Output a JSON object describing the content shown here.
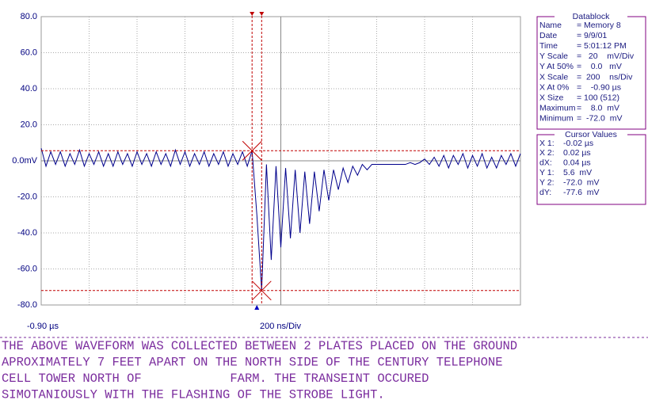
{
  "chart_data": {
    "type": "line",
    "x_start_label": "-0.90 µs",
    "x_scale_label": "200 ns/Div",
    "xlim": [
      -0.9,
      1.1
    ],
    "ylim": [
      -80,
      80
    ],
    "yticks": [
      {
        "value": 80,
        "label": "80.0"
      },
      {
        "value": 60,
        "label": "60.0"
      },
      {
        "value": 40,
        "label": "40.0"
      },
      {
        "value": 20,
        "label": "20.0"
      },
      {
        "value": 0,
        "label": "0.0mV"
      },
      {
        "value": -20,
        "label": "-20.0"
      },
      {
        "value": -40,
        "label": "-40.0"
      },
      {
        "value": -60,
        "label": "-60.0"
      },
      {
        "value": -80,
        "label": "-80.0"
      }
    ],
    "grid": true,
    "cursors": {
      "x1": -0.02,
      "x2": 0.02,
      "y1": 5.6,
      "y2": -72
    },
    "cursor_color": "#c00000",
    "series": [
      {
        "color": "#00008b",
        "x": [
          -0.9,
          -0.88,
          -0.86,
          -0.84,
          -0.82,
          -0.8,
          -0.78,
          -0.76,
          -0.74,
          -0.72,
          -0.7,
          -0.68,
          -0.66,
          -0.64,
          -0.62,
          -0.6,
          -0.58,
          -0.56,
          -0.54,
          -0.52,
          -0.5,
          -0.48,
          -0.46,
          -0.44,
          -0.42,
          -0.4,
          -0.38,
          -0.36,
          -0.34,
          -0.32,
          -0.3,
          -0.28,
          -0.26,
          -0.24,
          -0.22,
          -0.2,
          -0.18,
          -0.16,
          -0.14,
          -0.12,
          -0.1,
          -0.08,
          -0.06,
          -0.04,
          -0.02,
          0,
          0.02,
          0.04,
          0.06,
          0.08,
          0.1,
          0.12,
          0.14,
          0.16,
          0.18,
          0.2,
          0.22,
          0.24,
          0.26,
          0.28,
          0.3,
          0.32,
          0.34,
          0.36,
          0.38,
          0.4,
          0.42,
          0.44,
          0.46,
          0.48,
          0.5,
          0.52,
          0.54,
          0.56,
          0.58,
          0.6,
          0.62,
          0.64,
          0.66,
          0.68,
          0.7,
          0.72,
          0.74,
          0.76,
          0.78,
          0.8,
          0.82,
          0.84,
          0.86,
          0.88,
          0.9,
          0.92,
          0.94,
          0.96,
          0.98,
          1,
          1.02,
          1.04,
          1.06,
          1.08,
          1.1
        ],
        "values": [
          7,
          -3,
          5,
          -2,
          5,
          -3,
          4,
          -2,
          6,
          -3,
          4,
          -2,
          5,
          -3,
          4,
          -3,
          5,
          -2,
          4,
          -3,
          5,
          -2,
          4,
          -3,
          5,
          -2,
          4,
          -3,
          6,
          -2,
          5,
          -3,
          4,
          -2,
          5,
          -3,
          4,
          -2,
          5,
          -3,
          4,
          -2,
          5,
          -3,
          5.6,
          -30,
          -72,
          -2,
          -55,
          -3,
          -48,
          -4,
          -43,
          -5,
          -40,
          -6,
          -35,
          -6,
          -28,
          -5,
          -22,
          -5,
          -16,
          -4,
          -12,
          -3,
          -8,
          -2,
          -5,
          -2,
          -2,
          -2,
          -2,
          -2,
          -2,
          -2,
          -2,
          -1,
          -2,
          -1,
          1,
          -2,
          2,
          -3,
          3,
          -4,
          3,
          -2,
          4,
          -4,
          3,
          -3,
          4,
          -4,
          2,
          -4,
          3,
          -2,
          4,
          -3,
          4
        ]
      }
    ]
  },
  "datablock": {
    "title": "Datablock",
    "rows": [
      [
        "Name",
        "= Memory 8"
      ],
      [
        "Date",
        "= 9/9/01"
      ],
      [
        "Time",
        "= 5:01:12 PM"
      ],
      [
        "Y Scale",
        "=   20    mV/Div"
      ],
      [
        "Y At 50%",
        "=    0.0   mV"
      ],
      [
        "X Scale",
        "=  200    ns/Div"
      ],
      [
        "X At 0%",
        "=    -0.90 µs"
      ],
      [
        "X Size",
        "= 100 (512)"
      ],
      [
        "Maximum",
        "=    8.0  mV"
      ],
      [
        "Minimum",
        "=  -72.0  mV"
      ]
    ]
  },
  "cursor_values": {
    "title": "Cursor Values",
    "rows": [
      [
        "X 1:",
        "-0.02 µs"
      ],
      [
        "X 2:",
        "0.02 µs"
      ],
      [
        "dX:",
        "0.04 µs"
      ],
      [
        "Y 1:",
        "5.6  mV"
      ],
      [
        "Y 2:",
        "-72.0  mV"
      ],
      [
        "dY:",
        "-77.6  mV"
      ]
    ]
  },
  "caption": [
    "THE ABOVE WAVEFORM WAS COLLECTED BETWEEN 2 PLATES PLACED ON THE GROUND",
    "APROXIMATELY 7 FEET APART ON THE NORTH SIDE OF THE CENTURY TELEPHONE",
    "CELL TOWER NORTH OF            FARM. THE TRANSEINT OCCURED",
    "SIMOTANIOUSLY WITH THE FLASHING OF THE STROBE LIGHT."
  ]
}
